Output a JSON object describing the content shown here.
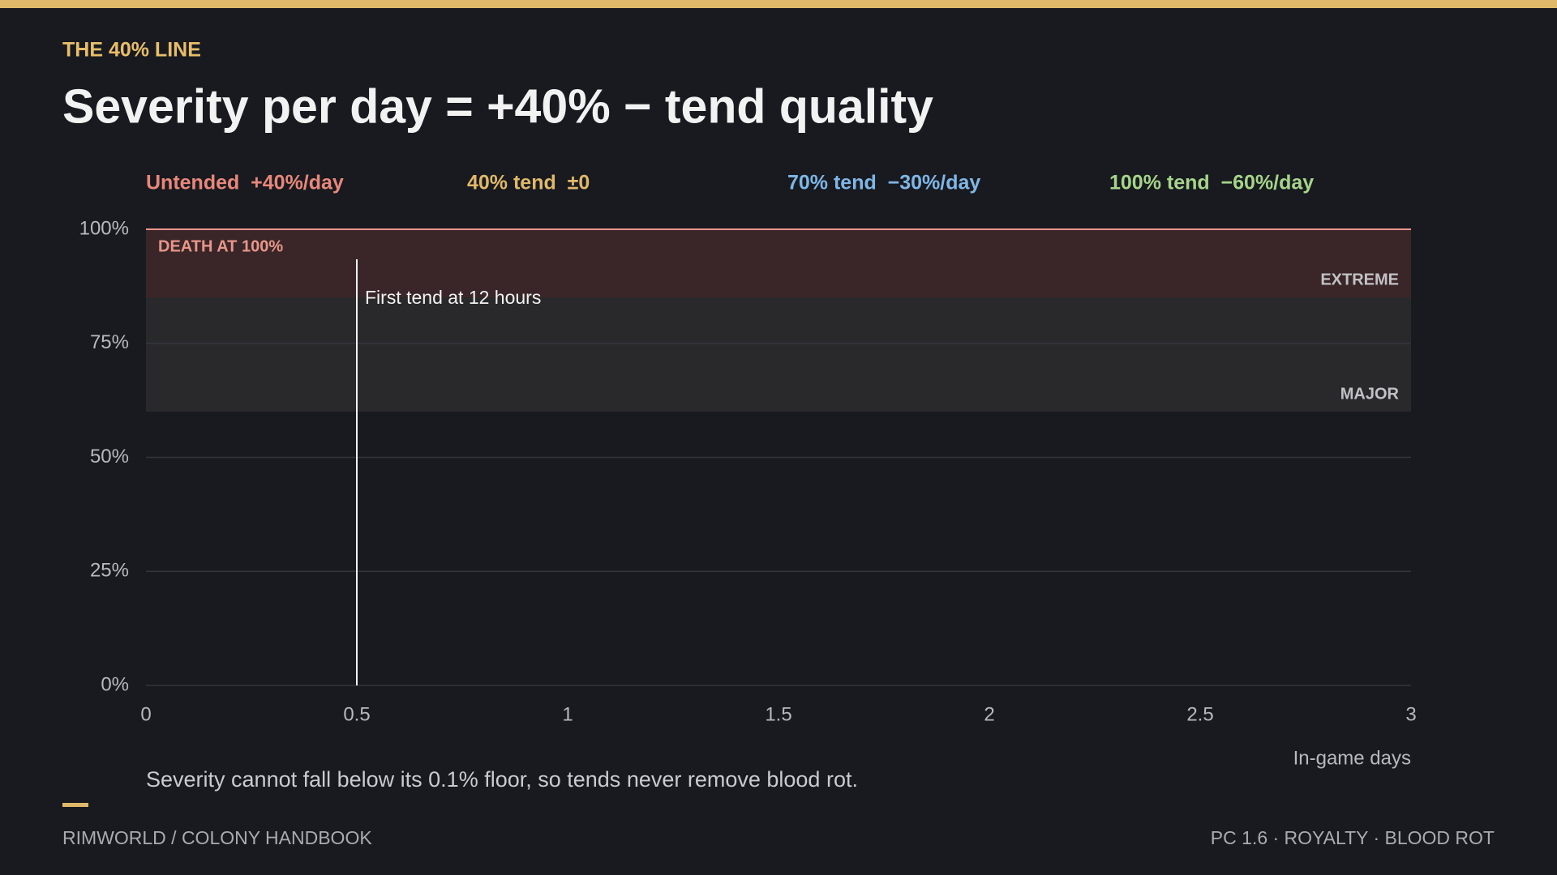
{
  "chart_data": {
    "type": "line",
    "eyebrow": "THE 40% LINE",
    "title": "Severity per day = +40% − tend quality",
    "legend": [
      {
        "name": "Untended  +40%/day",
        "color": "#e8877a"
      },
      {
        "name": "40% tend  ±0",
        "color": "#e0b86a"
      },
      {
        "name": "70% tend  −30%/day",
        "color": "#7fb6e6"
      },
      {
        "name": "100% tend  −60%/day",
        "color": "#a6d48a"
      }
    ],
    "xlim": [
      0,
      3
    ],
    "xticks": [
      0,
      0.5,
      1,
      1.5,
      2,
      2.5,
      3
    ],
    "ylim": [
      0,
      100
    ],
    "yticks": [
      {
        "value": 0,
        "label": "0%"
      },
      {
        "value": 25,
        "label": "25%"
      },
      {
        "value": 50,
        "label": "50%"
      },
      {
        "value": 75,
        "label": "75%"
      },
      {
        "value": 100,
        "label": "100%"
      }
    ],
    "grid": true,
    "xlabel": "In-game days",
    "bands": [
      {
        "label": "EXTREME",
        "from": 85,
        "to": 100,
        "color": "#3a2628"
      },
      {
        "label": "MAJOR",
        "from": 60,
        "to": 85,
        "color": "#29292b"
      }
    ],
    "threshold": {
      "value": 100,
      "label": "DEATH AT 100%",
      "color": "#e8968a"
    },
    "annotation": {
      "x": 0.5,
      "label": "First tend at 12 hours"
    },
    "note": "Severity cannot fall below its 0.1% floor, so tends never remove blood rot.",
    "footer_left": "RIMWORLD / COLONY HANDBOOK",
    "footer_right": "PC 1.6 · ROYALTY · BLOOD ROT"
  }
}
